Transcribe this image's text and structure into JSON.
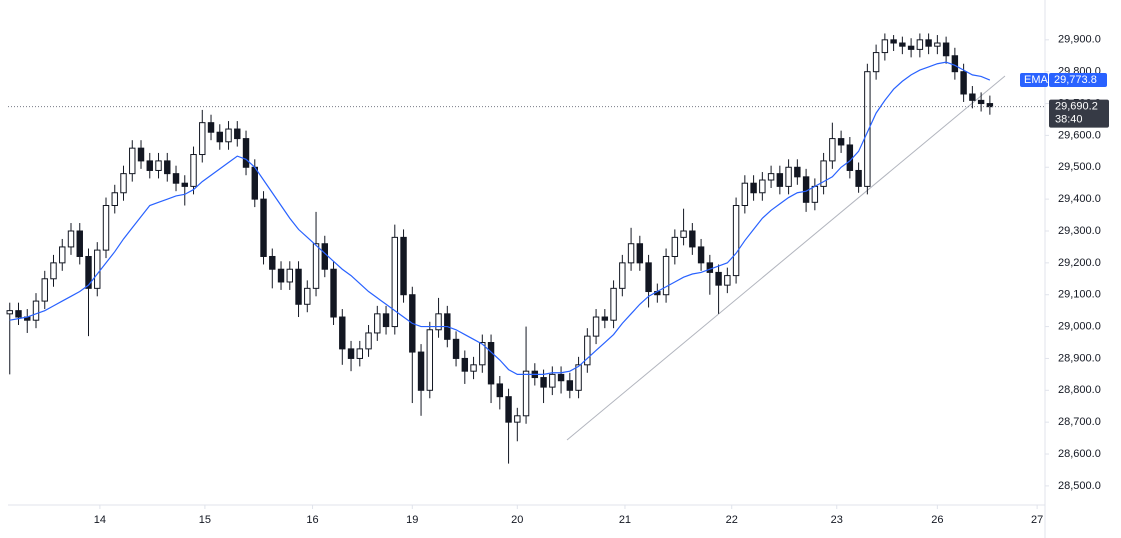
{
  "chart_data": {
    "type": "candlestick",
    "x": [
      0,
      1,
      2,
      3,
      4,
      5,
      6,
      7,
      8,
      9,
      10,
      11,
      12,
      13,
      14,
      15,
      16,
      17,
      18,
      19,
      20,
      21,
      22,
      23,
      24,
      25,
      26,
      27,
      28,
      29,
      30,
      31,
      32,
      33,
      34,
      35,
      36,
      37,
      38,
      39,
      40,
      41,
      42,
      43,
      44,
      45,
      46,
      47,
      48,
      49,
      50,
      51,
      52,
      53,
      54,
      55,
      56,
      57,
      58,
      59,
      60,
      61,
      62,
      63,
      64,
      65,
      66,
      67,
      68,
      69,
      70,
      71,
      72,
      73,
      74,
      75,
      76,
      77,
      78,
      79,
      80,
      81,
      82,
      83,
      84,
      85,
      86,
      87,
      88,
      89,
      90,
      91,
      92,
      93,
      94,
      95,
      96,
      97,
      98,
      99,
      100,
      101,
      102,
      103,
      104,
      105,
      106,
      107,
      108,
      109,
      110,
      111,
      112
    ],
    "open": [
      29040,
      29050,
      29030,
      29020,
      29080,
      29150,
      29200,
      29250,
      29300,
      29220,
      29120,
      29240,
      29380,
      29420,
      29480,
      29560,
      29520,
      29490,
      29520,
      29480,
      29450,
      29440,
      29540,
      29640,
      29610,
      29580,
      29620,
      29590,
      29500,
      29400,
      29220,
      29180,
      29140,
      29180,
      29070,
      29120,
      29260,
      29180,
      29030,
      28930,
      28900,
      28930,
      28980,
      29040,
      29000,
      29280,
      29100,
      28920,
      28800,
      28990,
      29040,
      28960,
      28900,
      28860,
      28880,
      28950,
      28820,
      28780,
      28700,
      28720,
      28860,
      28840,
      28810,
      28850,
      28830,
      28800,
      28880,
      28970,
      29030,
      29020,
      29120,
      29200,
      29260,
      29200,
      29110,
      29100,
      29220,
      29280,
      29300,
      29250,
      29200,
      29170,
      29130,
      29160,
      29380,
      29450,
      29420,
      29460,
      29480,
      29440,
      29500,
      29470,
      29390,
      29440,
      29520,
      29590,
      29570,
      29490,
      29440,
      29800,
      29860,
      29900,
      29890,
      29880,
      29870,
      29900,
      29880,
      29890,
      29850,
      29800,
      29730,
      29710,
      29700
    ],
    "high": [
      29075,
      29075,
      29055,
      29105,
      29175,
      29225,
      29275,
      29325,
      29325,
      29245,
      29265,
      29405,
      29445,
      29505,
      29585,
      29585,
      29545,
      29545,
      29545,
      29505,
      29475,
      29565,
      29680,
      29665,
      29635,
      29645,
      29645,
      29615,
      29525,
      29425,
      29245,
      29205,
      29205,
      29205,
      29145,
      29360,
      29285,
      29205,
      29055,
      28955,
      28955,
      29005,
      29065,
      29065,
      29320,
      29305,
      29125,
      28945,
      29015,
      29090,
      29065,
      28985,
      28925,
      28905,
      28975,
      28975,
      28845,
      28805,
      28745,
      29000,
      28885,
      28865,
      28875,
      28875,
      28855,
      28905,
      28995,
      29055,
      29055,
      29145,
      29225,
      29310,
      29285,
      29225,
      29135,
      29245,
      29305,
      29370,
      29325,
      29275,
      29225,
      29195,
      29185,
      29405,
      29475,
      29475,
      29485,
      29505,
      29505,
      29525,
      29525,
      29495,
      29465,
      29545,
      29640,
      29615,
      29595,
      29515,
      29825,
      29885,
      29920,
      29915,
      29910,
      29905,
      29920,
      29920,
      29915,
      29910,
      29875,
      29825,
      29755,
      29735,
      29725
    ],
    "low": [
      28850,
      29005,
      28980,
      28995,
      29055,
      29125,
      29175,
      29225,
      29195,
      28970,
      29095,
      29215,
      29355,
      29395,
      29455,
      29495,
      29465,
      29465,
      29455,
      29425,
      29380,
      29415,
      29515,
      29585,
      29555,
      29555,
      29565,
      29475,
      29375,
      29195,
      29120,
      29115,
      29115,
      29030,
      29045,
      29095,
      29155,
      29005,
      28880,
      28860,
      28875,
      28905,
      28955,
      28975,
      28975,
      29075,
      28760,
      28720,
      28775,
      28965,
      28935,
      28875,
      28820,
      28835,
      28855,
      28760,
      28740,
      28570,
      28640,
      28695,
      28815,
      28760,
      28785,
      28790,
      28775,
      28775,
      28855,
      28945,
      28995,
      28995,
      29095,
      29175,
      29175,
      29060,
      29075,
      29075,
      29195,
      29255,
      29225,
      29175,
      29100,
      29040,
      29105,
      29135,
      29355,
      29395,
      29395,
      29435,
      29415,
      29415,
      29445,
      29360,
      29365,
      29415,
      29495,
      29545,
      29465,
      29420,
      29415,
      29775,
      29835,
      29865,
      29855,
      29845,
      29845,
      29855,
      29855,
      29825,
      29775,
      29705,
      29685,
      29675,
      29665
    ],
    "close": [
      29050,
      29030,
      29020,
      29080,
      29150,
      29200,
      29250,
      29300,
      29220,
      29120,
      29240,
      29380,
      29420,
      29480,
      29560,
      29520,
      29490,
      29520,
      29480,
      29450,
      29440,
      29540,
      29640,
      29610,
      29580,
      29620,
      29590,
      29500,
      29400,
      29220,
      29180,
      29140,
      29180,
      29070,
      29120,
      29260,
      29180,
      29030,
      28930,
      28900,
      28930,
      28980,
      29040,
      29000,
      29280,
      29100,
      28920,
      28800,
      28990,
      29040,
      28960,
      28900,
      28860,
      28880,
      28950,
      28820,
      28780,
      28700,
      28720,
      28860,
      28840,
      28810,
      28850,
      28830,
      28800,
      28880,
      28970,
      29030,
      29020,
      29120,
      29200,
      29260,
      29200,
      29110,
      29100,
      29220,
      29280,
      29300,
      29250,
      29200,
      29170,
      29130,
      29160,
      29380,
      29450,
      29420,
      29460,
      29480,
      29440,
      29500,
      29470,
      29390,
      29440,
      29520,
      29590,
      29570,
      29490,
      29440,
      29800,
      29860,
      29900,
      29890,
      29880,
      29870,
      29900,
      29880,
      29890,
      29850,
      29800,
      29730,
      29710,
      29700,
      29690.2
    ],
    "up_color": "#ffffff",
    "down_color": "#131722",
    "ema": {
      "name": "EMA",
      "color": "#2962ff",
      "values": [
        29020,
        29025,
        29030,
        29040,
        29050,
        29065,
        29080,
        29095,
        29110,
        29130,
        29165,
        29200,
        29235,
        29275,
        29310,
        29345,
        29380,
        29390,
        29400,
        29410,
        29415,
        29430,
        29455,
        29475,
        29495,
        29515,
        29535,
        29525,
        29500,
        29460,
        29420,
        29380,
        29340,
        29305,
        29280,
        29255,
        29230,
        29205,
        29180,
        29160,
        29135,
        29110,
        29090,
        29070,
        29050,
        29030,
        29010,
        29000,
        29000,
        29000,
        29000,
        28990,
        28975,
        28960,
        28945,
        28920,
        28895,
        28865,
        28850,
        28850,
        28850,
        28850,
        28855,
        28855,
        28860,
        28875,
        28900,
        28925,
        28950,
        28975,
        29010,
        29040,
        29070,
        29095,
        29110,
        29125,
        29140,
        29155,
        29165,
        29170,
        29180,
        29190,
        29200,
        29230,
        29270,
        29305,
        29340,
        29365,
        29385,
        29405,
        29420,
        29425,
        29440,
        29455,
        29470,
        29500,
        29520,
        29550,
        29610,
        29670,
        29710,
        29745,
        29770,
        29790,
        29805,
        29815,
        29825,
        29830,
        29820,
        29805,
        29790,
        29785,
        29773.8
      ],
      "last_label": "29,773.8"
    },
    "last_close_label": "29,690.2",
    "countdown": "38:40",
    "xlim": [
      -0.2,
      118.3
    ],
    "xticks": [
      {
        "value": 10.3,
        "label": "14"
      },
      {
        "value": 22.3,
        "label": "15"
      },
      {
        "value": 34.6,
        "label": "16"
      },
      {
        "value": 46,
        "label": "19"
      },
      {
        "value": 58,
        "label": "20"
      },
      {
        "value": 70.3,
        "label": "21"
      },
      {
        "value": 82.5,
        "label": "22"
      },
      {
        "value": 94.5,
        "label": "23"
      },
      {
        "value": 106,
        "label": "26"
      },
      {
        "value": 117.4,
        "label": "27"
      }
    ],
    "ylim": [
      28440,
      30025
    ],
    "yticks": [
      {
        "value": 28500,
        "label": "28,500.0"
      },
      {
        "value": 28600,
        "label": "28,600.0"
      },
      {
        "value": 28700,
        "label": "28,700.0"
      },
      {
        "value": 28800,
        "label": "28,800.0"
      },
      {
        "value": 28900,
        "label": "28,900.0"
      },
      {
        "value": 29000,
        "label": "29,000.0"
      },
      {
        "value": 29100,
        "label": "29,100.0"
      },
      {
        "value": 29200,
        "label": "29,200.0"
      },
      {
        "value": 29300,
        "label": "29,300.0"
      },
      {
        "value": 29400,
        "label": "29,400.0"
      },
      {
        "value": 29500,
        "label": "29,500.0"
      },
      {
        "value": 29600,
        "label": "29,600.0"
      },
      {
        "value": 29700,
        "label": "29,700.0"
      },
      {
        "value": 29800,
        "label": "29,800.0"
      },
      {
        "value": 29900,
        "label": "29,900.0"
      }
    ]
  }
}
